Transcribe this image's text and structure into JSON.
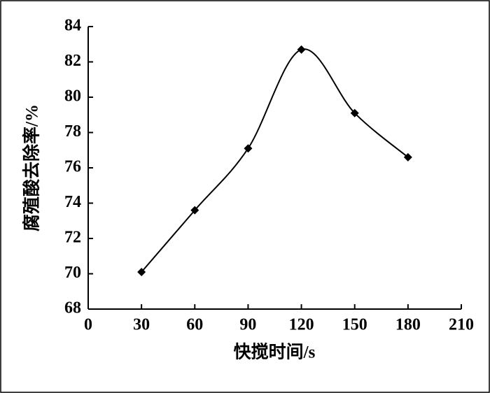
{
  "chart_data": {
    "type": "line",
    "x_label": "快搅时间/s",
    "y_label": "腐殖酸去除率/%",
    "x": [
      30,
      60,
      90,
      120,
      150,
      180
    ],
    "series": [
      {
        "color": "#000000",
        "values": [
          70.1,
          73.6,
          77.1,
          82.7,
          79.1,
          76.6
        ]
      }
    ],
    "xlim": [
      0,
      210
    ],
    "xticks": [
      0,
      30,
      60,
      90,
      120,
      150,
      180,
      210
    ],
    "ylim": [
      68,
      84
    ],
    "yticks": [
      68,
      70,
      72,
      74,
      76,
      78,
      80,
      82,
      84
    ],
    "smooth": true,
    "marker": "diamond"
  }
}
